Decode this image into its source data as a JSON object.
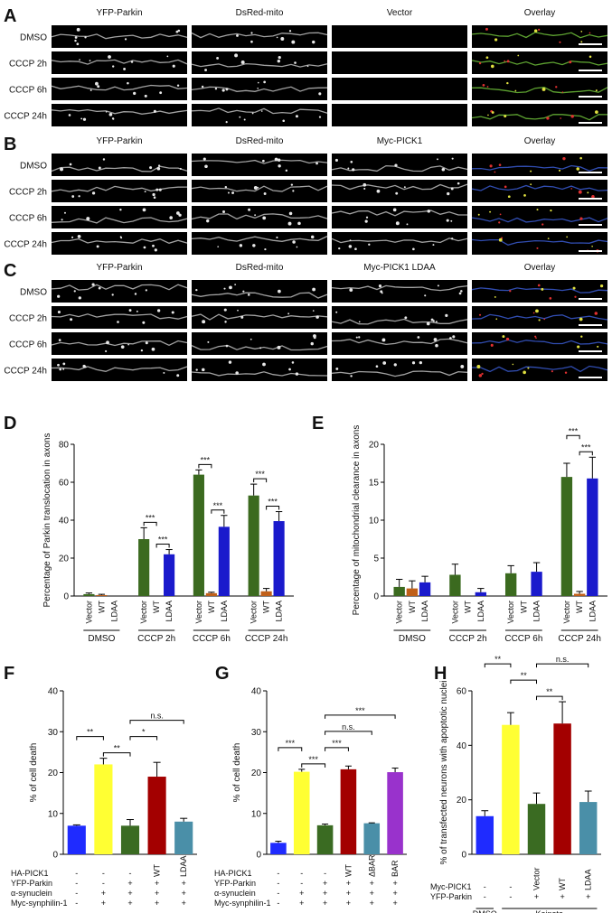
{
  "image_panels": [
    {
      "panel": "A",
      "columns": [
        {
          "name": "YFP-Parkin",
          "color": "#7ee03a"
        },
        {
          "name": "DsRed-mito",
          "color": "#e0201a"
        },
        {
          "name": "Vector",
          "color": "#2020e0"
        },
        {
          "name": "Overlay",
          "color": "#000000"
        }
      ],
      "rows": [
        "DMSO",
        "CCCP 2h",
        "CCCP 6h",
        "CCCP 24h"
      ]
    },
    {
      "panel": "B",
      "columns": [
        {
          "name": "YFP-Parkin",
          "color": "#7ee03a"
        },
        {
          "name": "DsRed-mito",
          "color": "#e0201a"
        },
        {
          "name": "Myc-PICK1",
          "color": "#2020e0"
        },
        {
          "name": "Overlay",
          "color": "#000000"
        }
      ],
      "rows": [
        "DMSO",
        "CCCP 2h",
        "CCCP 6h",
        "CCCP 24h"
      ]
    },
    {
      "panel": "C",
      "columns": [
        {
          "name": "YFP-Parkin",
          "color": "#7ee03a"
        },
        {
          "name": "DsRed-mito",
          "color": "#e0201a"
        },
        {
          "name": "Myc-PICK1 LDAA",
          "color": "#2020e0"
        },
        {
          "name": "Overlay",
          "color": "#000000"
        }
      ],
      "rows": [
        "DMSO",
        "CCCP 2h",
        "CCCP 6h",
        "CCCP 24h"
      ]
    }
  ],
  "chart_data": [
    {
      "type": "grouped_bar",
      "panel": "D",
      "ylabel": "Percentage of Parkin translocation in axons",
      "categories": [
        "DMSO",
        "CCCP 2h",
        "CCCP 6h",
        "CCCP 24h"
      ],
      "series": [
        {
          "name": "Vector",
          "color": "#3b6a1f",
          "values": [
            1,
            30,
            64,
            53
          ],
          "errors": [
            0.6,
            6,
            2.5,
            6
          ]
        },
        {
          "name": "WT",
          "color": "#c0601a",
          "values": [
            0.5,
            0,
            1.5,
            2.5
          ],
          "errors": [
            0.4,
            0,
            0.5,
            1.5
          ]
        },
        {
          "name": "LDAA",
          "color": "#1a1acc",
          "values": [
            0,
            22,
            36.5,
            39.5
          ],
          "errors": [
            0,
            2.5,
            6,
            5
          ]
        }
      ],
      "ylim": [
        0,
        80
      ],
      "yticks": [
        0,
        20,
        40,
        60,
        80
      ],
      "comparisons": [
        {
          "label": "***",
          "group": 1,
          "series": [
            1,
            2
          ]
        },
        {
          "label": "***",
          "group": 1,
          "series": [
            0,
            1
          ]
        },
        {
          "label": "***",
          "group": 2,
          "series": [
            1,
            2
          ]
        },
        {
          "label": "***",
          "group": 2,
          "series": [
            0,
            1
          ]
        },
        {
          "label": "***",
          "group": 3,
          "series": [
            1,
            2
          ]
        },
        {
          "label": "***",
          "group": 3,
          "series": [
            0,
            1
          ]
        }
      ]
    },
    {
      "type": "grouped_bar",
      "panel": "E",
      "ylabel": "Percentage of mitochondrial clearance in axons",
      "categories": [
        "DMSO",
        "CCCP 2h",
        "CCCP 6h",
        "CCCP 24h"
      ],
      "series": [
        {
          "name": "Vector",
          "color": "#3b6a1f",
          "values": [
            1.2,
            2.8,
            3,
            15.7
          ],
          "errors": [
            1,
            1.4,
            1,
            1.8
          ]
        },
        {
          "name": "WT",
          "color": "#c0601a",
          "values": [
            1,
            0,
            0,
            0.3
          ],
          "errors": [
            1,
            0,
            0,
            0.3
          ]
        },
        {
          "name": "LDAA",
          "color": "#1a1acc",
          "values": [
            1.8,
            0.5,
            3.2,
            15.5
          ],
          "errors": [
            0.8,
            0.5,
            1.2,
            2.8
          ]
        }
      ],
      "ylim": [
        0,
        20
      ],
      "yticks": [
        0,
        5,
        10,
        15,
        20
      ],
      "comparisons": [
        {
          "label": "***",
          "group": 3,
          "series": [
            1,
            2
          ]
        },
        {
          "label": "***",
          "group": 3,
          "series": [
            0,
            1
          ]
        }
      ]
    },
    {
      "type": "bar",
      "panel": "F",
      "ylabel": "% of cell death",
      "values": [
        7,
        22,
        7,
        19,
        8
      ],
      "errors": [
        0.2,
        1.5,
        1.5,
        3.5,
        0.8
      ],
      "colors": [
        "#1f2bff",
        "#ffff33",
        "#3a6b22",
        "#a30000",
        "#4a8fa8"
      ],
      "ylim": [
        0,
        40
      ],
      "yticks": [
        0,
        10,
        20,
        30,
        40
      ],
      "conditions": [
        {
          "name": "HA-PICK1",
          "values": [
            "-",
            "-",
            "-",
            "WT",
            "LDAA"
          ]
        },
        {
          "name": "YFP-Parkin",
          "values": [
            "-",
            "-",
            "+",
            "+",
            "+"
          ]
        },
        {
          "name": "α-synuclein",
          "values": [
            "-",
            "+",
            "+",
            "+",
            "+"
          ]
        },
        {
          "name": "Myc-synphilin-1",
          "values": [
            "-",
            "+",
            "+",
            "+",
            "+"
          ]
        }
      ],
      "comparisons": [
        {
          "label": "**",
          "bars": [
            1,
            2
          ]
        },
        {
          "label": "**",
          "bars": [
            0,
            1
          ]
        },
        {
          "label": "*",
          "bars": [
            2,
            3
          ]
        },
        {
          "label": "n.s.",
          "bars": [
            2,
            4
          ]
        }
      ]
    },
    {
      "type": "bar",
      "panel": "G",
      "ylabel": "% of cell death",
      "values": [
        2.8,
        20.2,
        7.1,
        20.8,
        7.6,
        20.1
      ],
      "errors": [
        0.4,
        0.6,
        0.3,
        0.8,
        0.1,
        1
      ],
      "colors": [
        "#1f2bff",
        "#ffff33",
        "#3a6b22",
        "#a30000",
        "#4a8fa8",
        "#9932cc"
      ],
      "ylim": [
        0,
        40
      ],
      "yticks": [
        0,
        10,
        20,
        30,
        40
      ],
      "conditions": [
        {
          "name": "HA-PICK1",
          "values": [
            "-",
            "-",
            "-",
            "WT",
            "ΔBAR",
            "BAR"
          ]
        },
        {
          "name": "YFP-Parkin",
          "values": [
            "-",
            "-",
            "+",
            "+",
            "+",
            "+"
          ]
        },
        {
          "name": "α-synuclein",
          "values": [
            "-",
            "+",
            "+",
            "+",
            "+",
            "+"
          ]
        },
        {
          "name": "Myc-synphilin-1",
          "values": [
            "-",
            "+",
            "+",
            "+",
            "+",
            "+"
          ]
        }
      ],
      "comparisons": [
        {
          "label": "***",
          "bars": [
            1,
            2
          ]
        },
        {
          "label": "***",
          "bars": [
            0,
            1
          ]
        },
        {
          "label": "***",
          "bars": [
            2,
            3
          ]
        },
        {
          "label": "n.s.",
          "bars": [
            2,
            4
          ]
        },
        {
          "label": "***",
          "bars": [
            2,
            5
          ]
        }
      ]
    },
    {
      "type": "bar",
      "panel": "H",
      "ylabel": "% of transfected neurons with apoptotic nuclei",
      "values": [
        14,
        47.5,
        18.5,
        48,
        19.2
      ],
      "errors": [
        2,
        4.5,
        4,
        8,
        4
      ],
      "colors": [
        "#1f2bff",
        "#ffff33",
        "#3a6b22",
        "#a30000",
        "#4a8fa8"
      ],
      "ylim": [
        0,
        60
      ],
      "yticks": [
        0,
        20,
        40,
        60
      ],
      "conditions": [
        {
          "name": "Myc-PICK1",
          "values": [
            "-",
            "-",
            "Vector",
            "WT",
            "LDAA"
          ]
        },
        {
          "name": "YFP-Parkin",
          "values": [
            "-",
            "-",
            "+",
            "+",
            "+"
          ]
        }
      ],
      "groups": [
        {
          "name": "DMSO",
          "bars": [
            0,
            0
          ]
        },
        {
          "name": "Kainate",
          "bars": [
            1,
            4
          ]
        }
      ],
      "comparisons": [
        {
          "label": "**",
          "bars": [
            2,
            3
          ]
        },
        {
          "label": "**",
          "bars": [
            1,
            2
          ]
        },
        {
          "label": "**",
          "bars": [
            0,
            1
          ]
        },
        {
          "label": "n.s.",
          "bars": [
            2,
            4
          ]
        }
      ]
    }
  ]
}
